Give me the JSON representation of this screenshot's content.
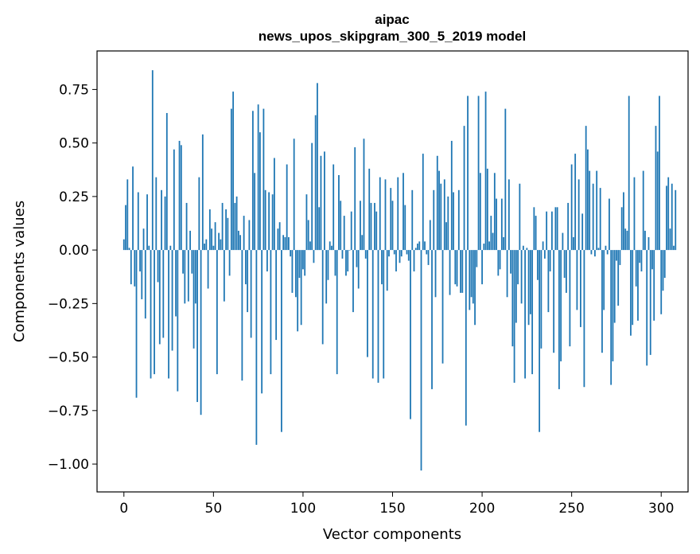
{
  "chart_data": {
    "type": "bar",
    "title": "aipac",
    "subtitle": "news_upos_skipgram_300_5_2019 model",
    "xlabel": "Vector components",
    "ylabel": "Components values",
    "xlim": [
      -15,
      315
    ],
    "ylim": [
      -1.13,
      0.93
    ],
    "xticks": [
      0,
      50,
      100,
      150,
      200,
      250,
      300
    ],
    "xtick_labels": [
      "0",
      "50",
      "100",
      "150",
      "200",
      "250",
      "300"
    ],
    "yticks": [
      -1.0,
      -0.75,
      -0.5,
      -0.25,
      0.0,
      0.25,
      0.5,
      0.75
    ],
    "ytick_labels": [
      "−1.00",
      "−0.75",
      "−0.50",
      "−0.25",
      "0.00",
      "0.25",
      "0.50",
      "0.75"
    ],
    "bar_color": "#1f77b4",
    "grid": false,
    "values": [
      0.05,
      0.21,
      0.33,
      0.01,
      -0.16,
      0.39,
      -0.17,
      -0.69,
      0.27,
      -0.1,
      -0.23,
      0.1,
      -0.32,
      0.26,
      0.02,
      -0.6,
      0.84,
      -0.58,
      0.34,
      -0.15,
      -0.44,
      0.28,
      -0.41,
      0.25,
      0.64,
      -0.6,
      0.02,
      -0.47,
      0.47,
      -0.31,
      -0.66,
      0.51,
      0.49,
      -0.11,
      -0.25,
      0.22,
      -0.24,
      0.09,
      -0.11,
      -0.46,
      -0.25,
      -0.71,
      0.34,
      -0.77,
      0.54,
      0.03,
      0.05,
      -0.18,
      0.19,
      0.1,
      0.02,
      0.13,
      -0.58,
      0.08,
      0.05,
      0.22,
      -0.24,
      0.19,
      0.15,
      -0.12,
      0.66,
      0.74,
      0.22,
      0.25,
      0.09,
      0.07,
      -0.61,
      0.16,
      -0.16,
      -0.29,
      0.14,
      -0.41,
      0.65,
      0.36,
      -0.91,
      0.68,
      0.55,
      -0.67,
      0.66,
      0.28,
      -0.1,
      0.27,
      -0.58,
      0.26,
      0.43,
      -0.42,
      0.1,
      0.13,
      -0.85,
      0.07,
      0.06,
      0.4,
      0.06,
      -0.03,
      -0.2,
      0.52,
      -0.22,
      -0.38,
      -0.13,
      -0.35,
      -0.09,
      -0.12,
      0.26,
      0.14,
      0.04,
      0.5,
      -0.06,
      0.63,
      0.78,
      0.2,
      0.44,
      -0.44,
      0.46,
      -0.25,
      -0.14,
      0.04,
      0.02,
      0.4,
      -0.12,
      -0.58,
      0.35,
      0.23,
      -0.04,
      0.16,
      -0.12,
      -0.1,
      0.0,
      0.18,
      -0.29,
      0.48,
      -0.08,
      -0.18,
      0.23,
      0.07,
      0.52,
      -0.04,
      -0.5,
      0.38,
      0.22,
      -0.6,
      0.22,
      0.18,
      -0.62,
      0.34,
      -0.16,
      -0.6,
      0.33,
      -0.19,
      -0.03,
      0.29,
      0.23,
      -0.02,
      -0.1,
      0.34,
      -0.06,
      -0.03,
      0.36,
      0.21,
      -0.02,
      -0.05,
      -0.79,
      0.28,
      -0.1,
      0.01,
      0.03,
      0.04,
      -1.03,
      0.45,
      0.04,
      -0.02,
      -0.07,
      0.14,
      -0.65,
      0.28,
      -0.22,
      0.44,
      0.37,
      0.31,
      -0.53,
      0.33,
      0.13,
      0.25,
      -0.21,
      0.51,
      0.27,
      -0.16,
      -0.17,
      0.28,
      -0.2,
      -0.2,
      0.58,
      -0.82,
      0.72,
      -0.28,
      -0.22,
      -0.25,
      -0.35,
      -0.08,
      0.72,
      0.36,
      -0.16,
      0.03,
      0.74,
      0.38,
      0.04,
      0.16,
      0.08,
      0.36,
      0.24,
      -0.12,
      -0.09,
      0.24,
      0.06,
      0.66,
      -0.22,
      0.33,
      -0.11,
      -0.45,
      -0.62,
      -0.34,
      -0.16,
      0.31,
      -0.25,
      0.02,
      -0.6,
      0.01,
      -0.35,
      -0.3,
      -0.58,
      0.2,
      0.16,
      -0.14,
      -0.85,
      -0.46,
      0.04,
      -0.04,
      0.18,
      -0.29,
      -0.1,
      0.18,
      -0.48,
      0.2,
      0.2,
      -0.65,
      -0.52,
      0.08,
      -0.13,
      -0.2,
      0.22,
      -0.45,
      0.4,
      0.06,
      0.45,
      -0.28,
      0.33,
      -0.36,
      0.17,
      -0.64,
      0.58,
      0.47,
      0.37,
      -0.02,
      0.31,
      -0.03,
      0.37,
      0.01,
      0.29,
      -0.48,
      -0.28,
      0.02,
      -0.02,
      0.24,
      -0.63,
      -0.52,
      -0.34,
      -0.05,
      -0.26,
      -0.07,
      0.2,
      0.27,
      0.1,
      0.09,
      0.72,
      -0.4,
      -0.35,
      0.34,
      -0.17,
      -0.33,
      -0.06,
      -0.1,
      0.37,
      0.09,
      -0.54,
      0.06,
      -0.49,
      -0.09,
      -0.33,
      0.58,
      0.46,
      0.72,
      -0.3,
      -0.19,
      -0.13,
      0.3,
      0.34,
      0.1,
      0.31,
      0.02,
      0.28
    ]
  }
}
